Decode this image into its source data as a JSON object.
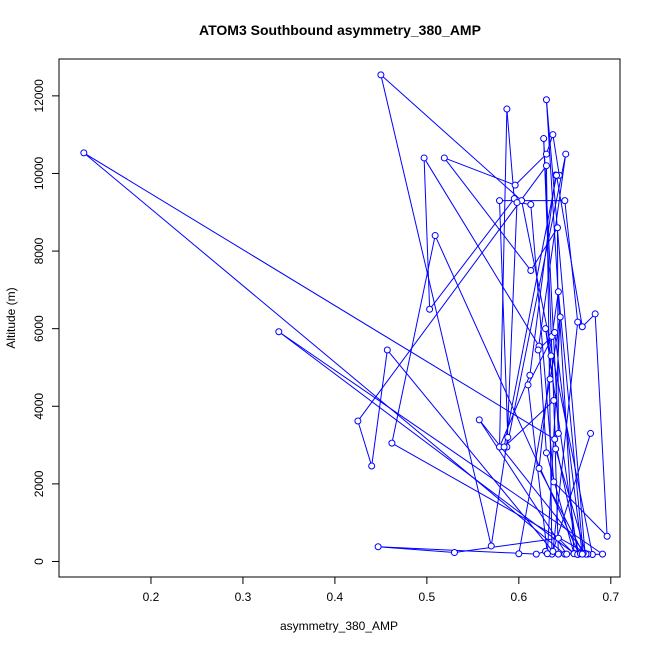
{
  "chart_data": {
    "type": "scatter",
    "title": "ATOM3 Southbound asymmetry_380_AMP",
    "xlabel": "asymmetry_380_AMP",
    "ylabel": "Altitude (m)",
    "xlim": [
      0.1,
      0.71
    ],
    "ylim": [
      -400,
      12950
    ],
    "xticks": [
      0.2,
      0.3,
      0.4,
      0.5,
      0.6,
      0.7
    ],
    "xtick_labels": [
      "0.2",
      "0.3",
      "0.4",
      "0.5",
      "0.6",
      "0.7"
    ],
    "yticks": [
      0,
      2000,
      4000,
      6000,
      8000,
      10000,
      12000
    ],
    "ytick_labels": [
      "0",
      "2000",
      "4000",
      "6000",
      "8000",
      "10000",
      "12000"
    ],
    "grid": false,
    "legend": "none",
    "series": [
      {
        "style": "points connected by lines",
        "color": "#0000ff",
        "x": [
          0.678,
          0.636,
          0.63,
          0.425,
          0.44,
          0.457,
          0.637,
          0.664,
          0.65,
          0.579,
          0.588,
          0.57,
          0.45,
          0.603,
          0.68,
          0.691,
          0.339,
          0.66,
          0.63,
          0.672,
          0.675,
          0.462,
          0.509,
          0.665,
          0.639,
          0.127,
          0.65,
          0.652,
          0.557,
          0.673,
          0.64,
          0.627,
          0.643,
          0.642,
          0.613,
          0.519,
          0.596,
          0.63,
          0.637,
          0.644,
          0.64,
          0.612,
          0.579,
          0.587,
          0.595,
          0.503,
          0.497,
          0.622,
          0.63,
          0.66,
          0.643,
          0.53,
          0.447,
          0.619,
          0.629,
          0.664,
          0.629,
          0.635,
          0.622,
          0.67,
          0.643,
          0.636,
          0.621,
          0.651,
          0.587,
          0.598,
          0.613,
          0.638,
          0.696,
          0.683,
          0.669,
          0.641,
          0.584,
          0.638,
          0.643,
          0.667,
          0.669,
          0.639,
          0.61,
          0.631,
          0.645,
          0.634,
          0.6
        ],
        "y": [
          3300,
          190,
          10200,
          3620,
          2460,
          5450,
          260,
          6170,
          9300,
          9300,
          3200,
          400,
          12540,
          9300,
          180,
          190,
          5920,
          210,
          11900,
          210,
          190,
          3050,
          8400,
          210,
          3150,
          10530,
          190,
          190,
          3650,
          190,
          2900,
          10900,
          3300,
          8600,
          7500,
          10400,
          9700,
          10500,
          11000,
          9950,
          9960,
          4800,
          2950,
          11660,
          9350,
          6500,
          10400,
          5550,
          2800,
          200,
          600,
          230,
          380,
          190,
          260,
          180,
          6000,
          5300,
          2400,
          210,
          6950,
          5800,
          5450,
          10500,
          2950,
          9250,
          9200,
          2050,
          650,
          6380,
          6050,
          9950,
          2950,
          4150,
          190,
          200,
          190,
          5900,
          4550,
          200,
          6300,
          4700,
          200
        ]
      }
    ]
  }
}
